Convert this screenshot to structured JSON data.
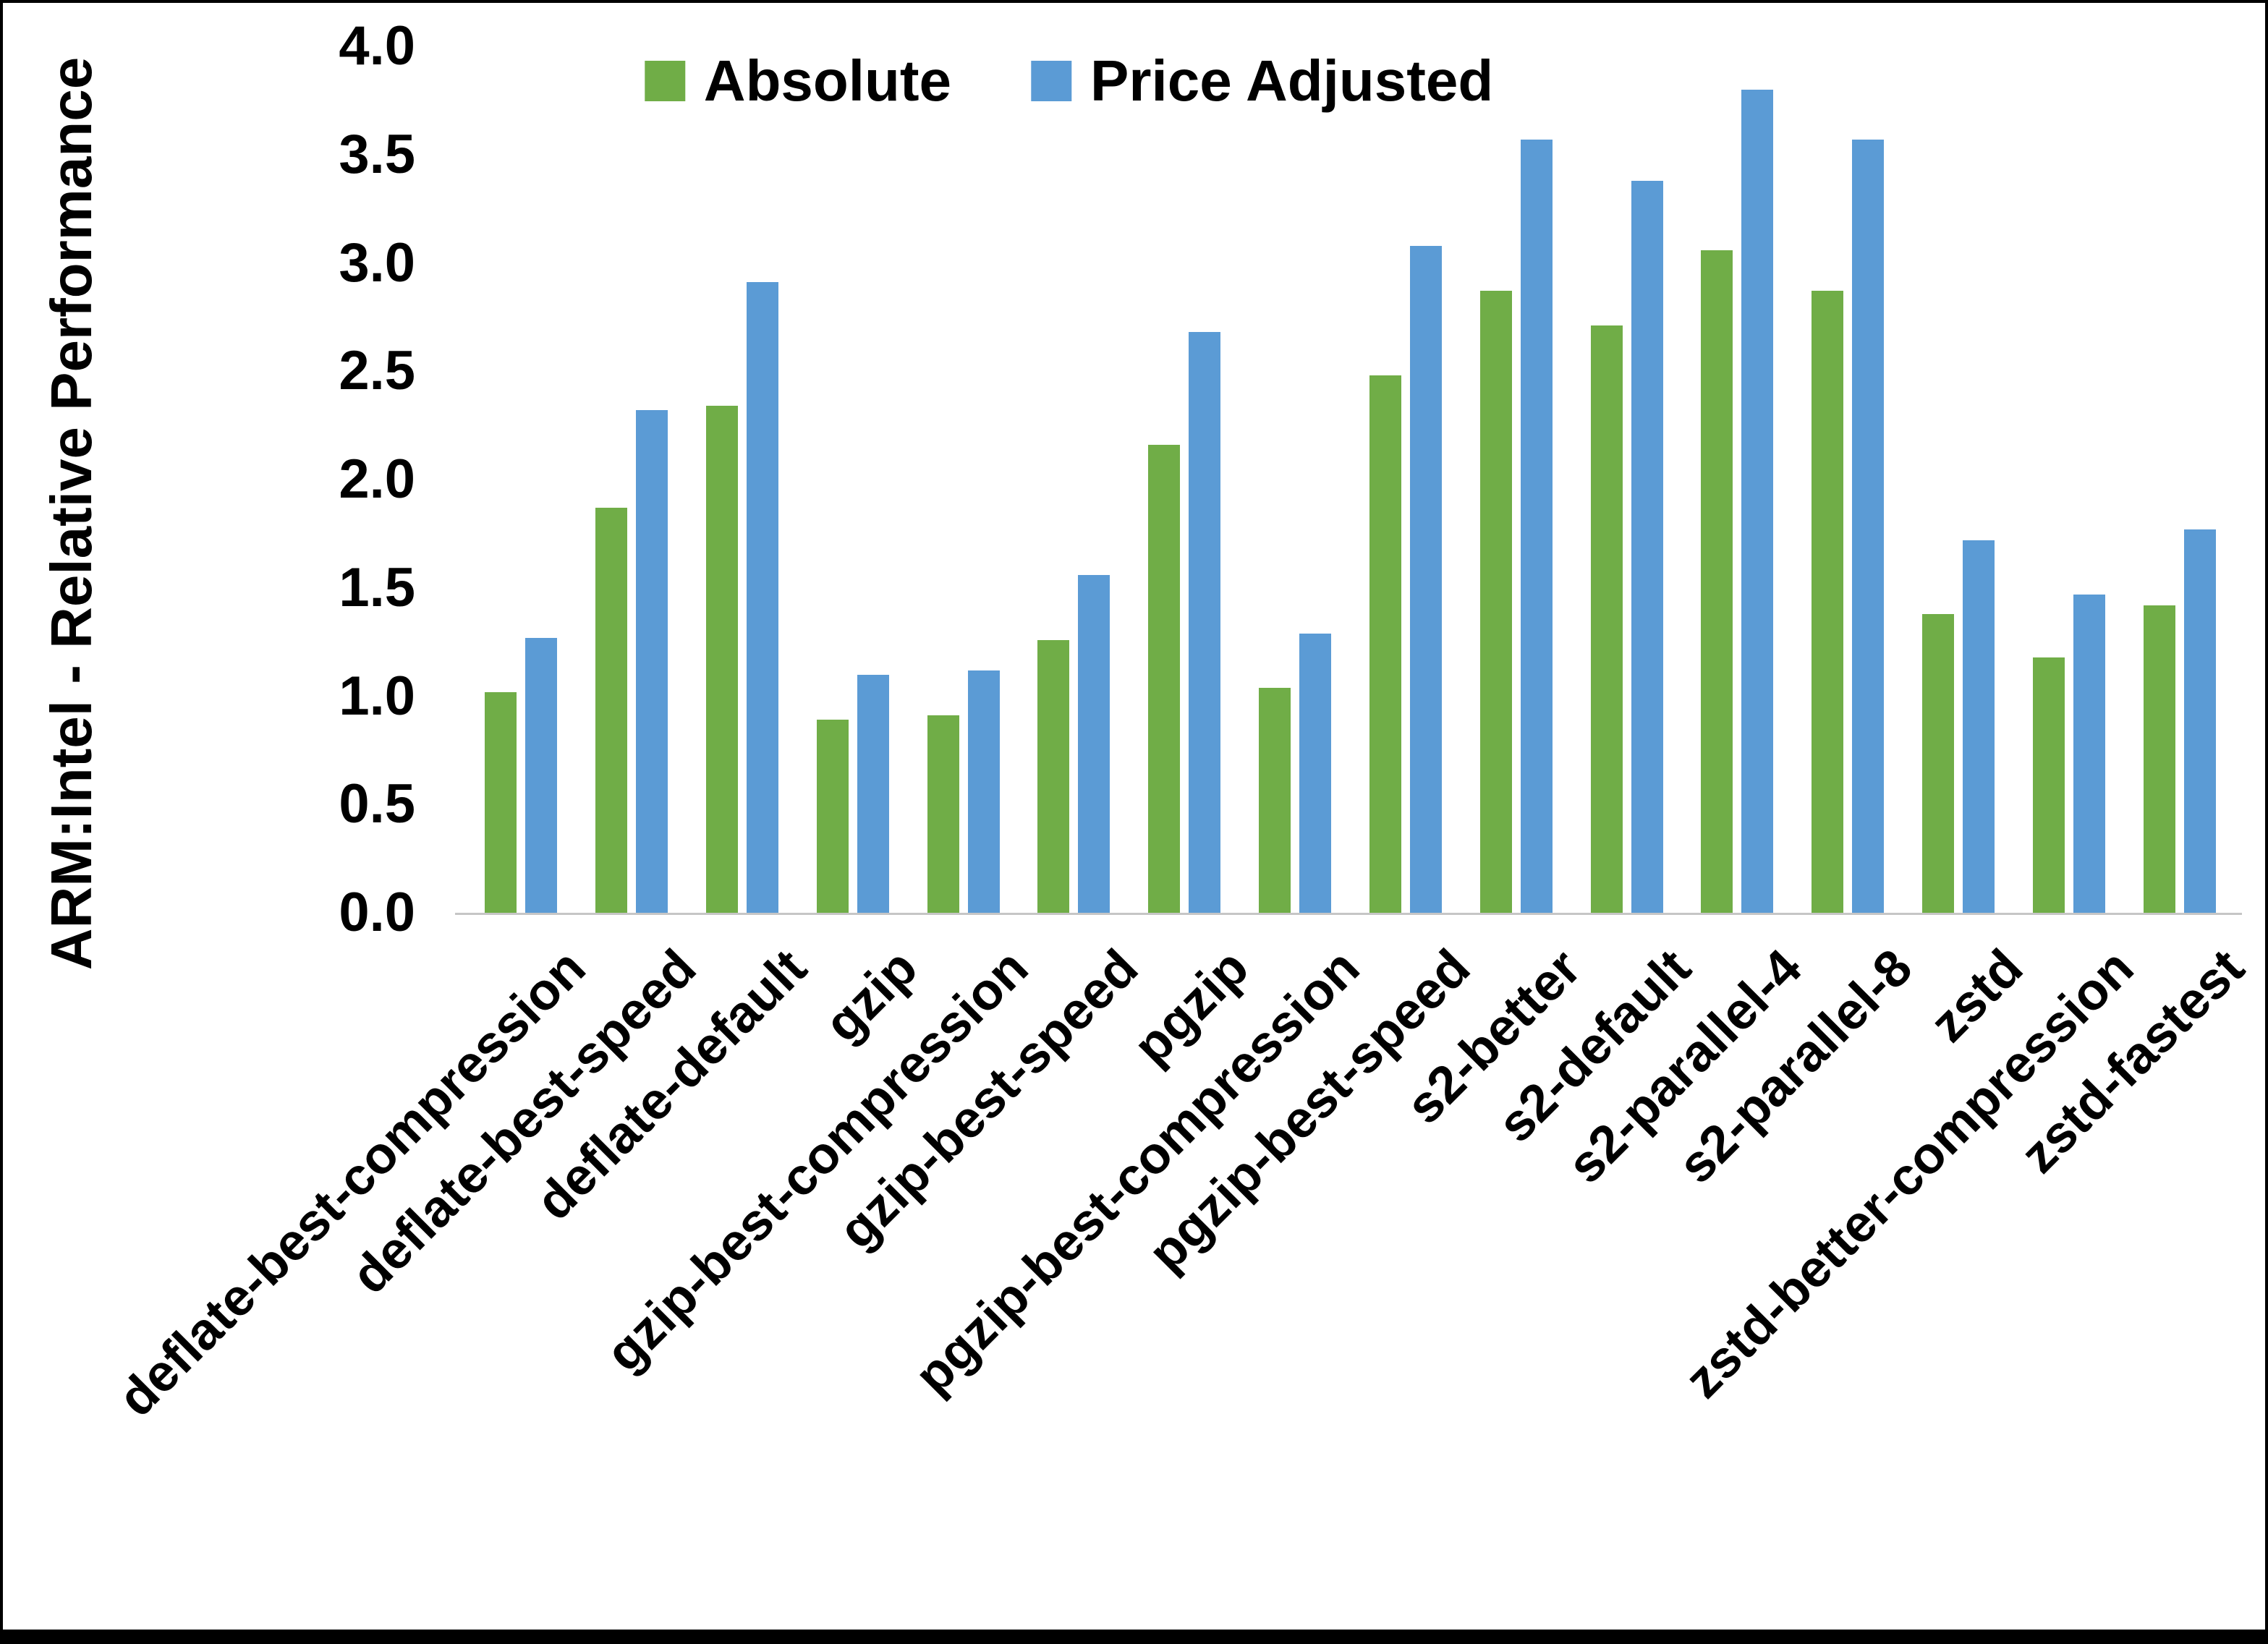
{
  "frame": {
    "background": "#ffffff",
    "border_color": "#000000"
  },
  "chart_data": {
    "type": "bar",
    "title": "",
    "xlabel": "",
    "ylabel": "ARM:Intel - Relative Performance",
    "ylim": [
      0.0,
      4.0
    ],
    "ytick_step": 0.5,
    "yticks": [
      "0.0",
      "0.5",
      "1.0",
      "1.5",
      "2.0",
      "2.5",
      "3.0",
      "3.5",
      "4.0"
    ],
    "grid": false,
    "legend_position": "top-center",
    "axis_line_color": "#c6c6c6",
    "categories": [
      "deflate-best-compression",
      "deflate-best-speed",
      "deflate-default",
      "gzip",
      "gzip-best-compression",
      "gzip-best-speed",
      "pgzip",
      "pgzip-best-compression",
      "pgzip-best-speed",
      "s2-better",
      "s2-default",
      "s2-parallel-4",
      "s2-parallel-8",
      "zstd",
      "zstd-better-compression",
      "zstd-fastest"
    ],
    "series": [
      {
        "name": "Absolute",
        "color": "#70AD47",
        "values": [
          1.02,
          1.87,
          2.34,
          0.89,
          0.91,
          1.26,
          2.16,
          1.04,
          2.48,
          2.87,
          2.71,
          3.06,
          2.87,
          1.38,
          1.18,
          1.42
        ]
      },
      {
        "name": "Price Adjusted",
        "color": "#5B9BD5",
        "values": [
          1.27,
          2.32,
          2.91,
          1.1,
          1.12,
          1.56,
          2.68,
          1.29,
          3.08,
          3.57,
          3.38,
          3.8,
          3.57,
          1.72,
          1.47,
          1.77
        ]
      }
    ]
  }
}
